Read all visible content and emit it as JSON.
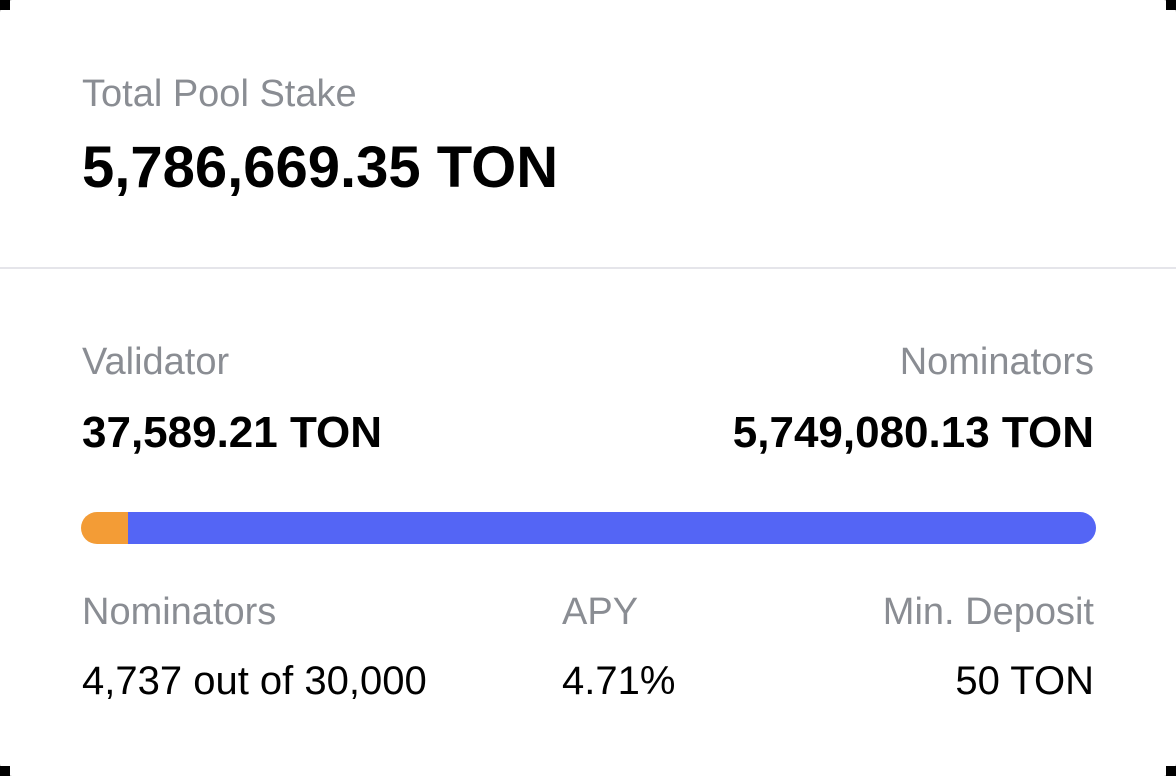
{
  "pool": {
    "total_label": "Total Pool Stake",
    "total_value": "5,786,669.35 TON"
  },
  "split": {
    "validator_label": "Validator",
    "validator_value": "37,589.21 TON",
    "nominators_label": "Nominators",
    "nominators_value": "5,749,080.13 TON",
    "validator_share": 0.0065,
    "nominators_share": 0.9935,
    "validator_color": "#f39c36",
    "nominators_color": "#5465f5"
  },
  "stats": {
    "nominators_label": "Nominators",
    "nominators_value": "4,737 out of 30,000",
    "apy_label": "APY",
    "apy_value": "4.71%",
    "min_deposit_label": "Min. Deposit",
    "min_deposit_value": "50 TON"
  }
}
